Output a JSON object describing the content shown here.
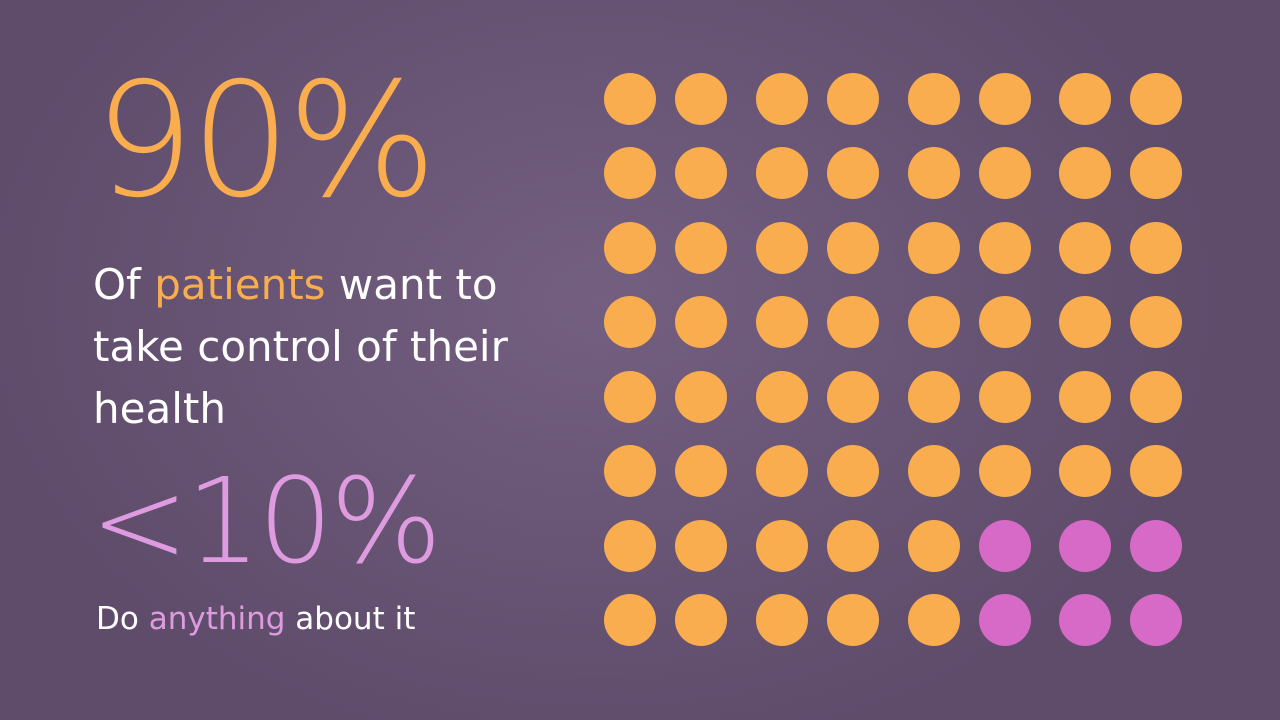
{
  "stat1": {
    "value": "90%",
    "desc_before": "Of ",
    "desc_highlight": "patients",
    "desc_after": " want to take control of their health"
  },
  "stat2": {
    "value": "<10%",
    "desc_before": "Do ",
    "desc_highlight": "anything",
    "desc_after": " about it"
  },
  "colors": {
    "background": "#6a5676",
    "accent_orange": "#f9ad4f",
    "accent_pink": "#df9be0",
    "dot_orange": "#f9ad4f",
    "dot_pink": "#d66ac6",
    "text": "#ffffff"
  },
  "chart_data": {
    "type": "waffle",
    "rows": 8,
    "columns": 8,
    "total": 64,
    "orange_count": 58,
    "pink_count": 6,
    "pink_cells": [
      [
        6,
        5
      ],
      [
        6,
        6
      ],
      [
        6,
        7
      ],
      [
        7,
        5
      ],
      [
        7,
        6
      ],
      [
        7,
        7
      ]
    ]
  }
}
